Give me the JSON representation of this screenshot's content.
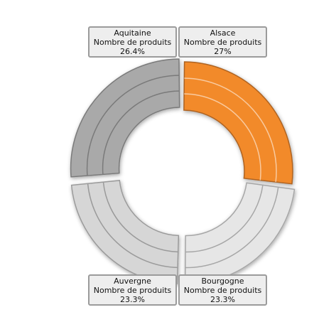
{
  "chart_data": {
    "type": "pie",
    "title": "",
    "series_label": "Nombre de produits",
    "categories": [
      "Alsace",
      "Bourgogne",
      "Auvergne",
      "Aquitaine"
    ],
    "values": [
      27,
      23.3,
      23.3,
      26.4
    ],
    "value_labels": [
      "27%",
      "23.3%",
      "23.3%",
      "26.4%"
    ],
    "colors": [
      "#f28a2c",
      "#e6e6e6",
      "#d6d6d6",
      "#a9a9a9"
    ],
    "highlighted": "Alsace",
    "legend": "none"
  }
}
